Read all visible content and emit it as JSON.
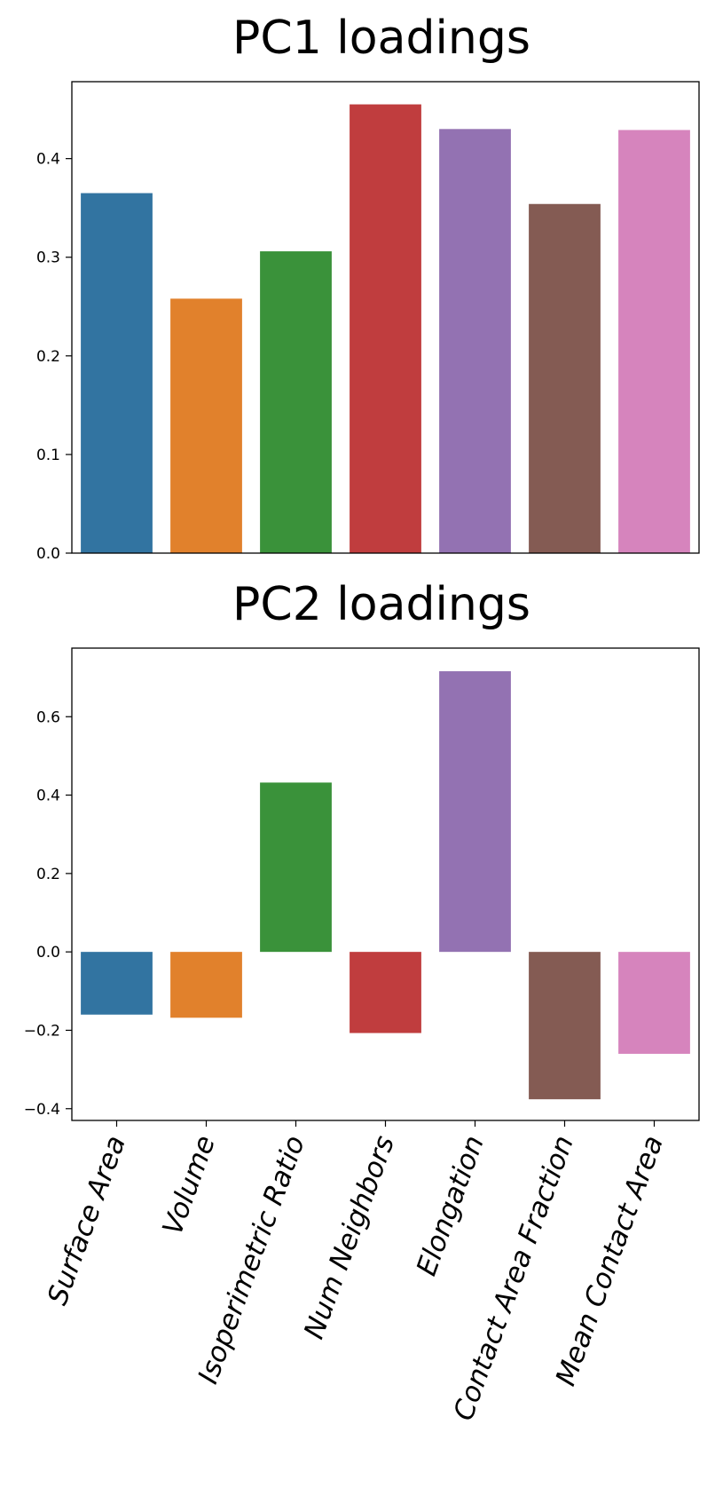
{
  "chart_data": [
    {
      "type": "bar",
      "title": "PC1 loadings",
      "categories": [
        "Surface Area",
        "Volume",
        "Isoperimetric Ratio",
        "Num Neighbors",
        "Elongation",
        "Contact Area Fraction",
        "Mean Contact Area"
      ],
      "values": [
        0.365,
        0.258,
        0.306,
        0.455,
        0.43,
        0.354,
        0.429
      ],
      "colors": [
        "#3274a1",
        "#e1812c",
        "#3a923a",
        "#c03d3e",
        "#9372b2",
        "#845b53",
        "#d684bd"
      ],
      "ylim": [
        0.0,
        0.478
      ],
      "yticks": [
        0.0,
        0.1,
        0.2,
        0.3,
        0.4
      ],
      "ytick_labels": [
        "0.0",
        "0.1",
        "0.2",
        "0.3",
        "0.4"
      ],
      "xlabel": "",
      "ylabel": "",
      "show_xtick_labels": false
    },
    {
      "type": "bar",
      "title": "PC2 loadings",
      "categories": [
        "Surface Area",
        "Volume",
        "Isoperimetric Ratio",
        "Num Neighbors",
        "Elongation",
        "Contact Area Fraction",
        "Mean Contact Area"
      ],
      "values": [
        -0.16,
        -0.168,
        0.432,
        -0.207,
        0.716,
        -0.376,
        -0.26
      ],
      "colors": [
        "#3274a1",
        "#e1812c",
        "#3a923a",
        "#c03d3e",
        "#9372b2",
        "#845b53",
        "#d684bd"
      ],
      "ylim": [
        -0.43,
        0.775
      ],
      "yticks": [
        -0.4,
        -0.2,
        0.0,
        0.2,
        0.4,
        0.6
      ],
      "ytick_labels": [
        "−0.4",
        "−0.2",
        "0.0",
        "0.2",
        "0.4",
        "0.6"
      ],
      "xlabel": "",
      "ylabel": "",
      "show_xtick_labels": true
    }
  ]
}
